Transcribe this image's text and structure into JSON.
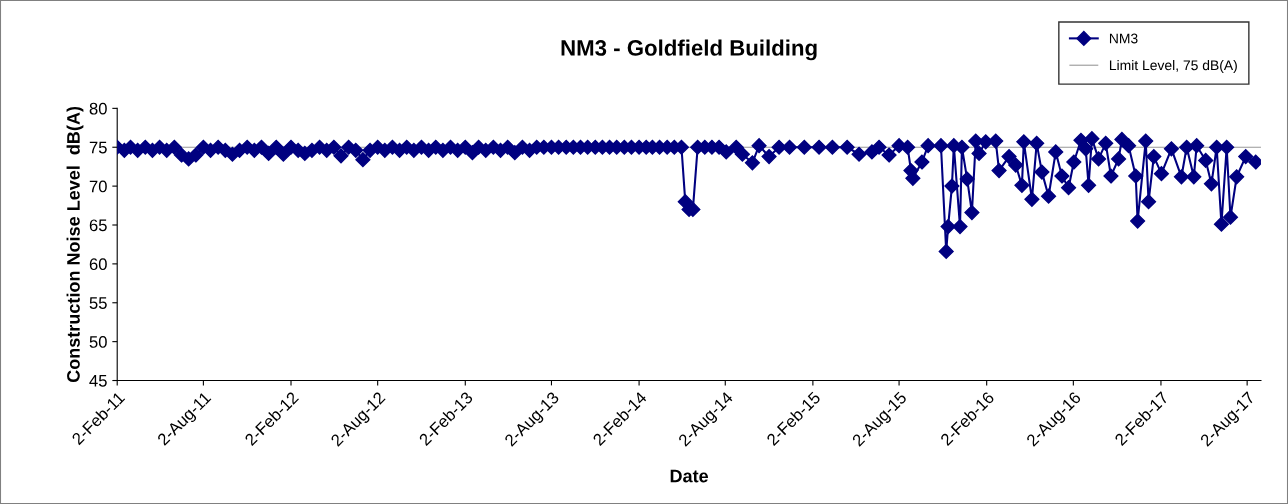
{
  "chart_data": {
    "type": "line",
    "title": "NM3 - Goldfield Building",
    "xlabel": "Date",
    "ylabel": "Construction Noise Level  dB(A)",
    "ylim": [
      45,
      80
    ],
    "yticks": [
      45,
      50,
      55,
      60,
      65,
      70,
      75,
      80
    ],
    "xlim": [
      "2011-02-02",
      "2017-08-31"
    ],
    "xticks": [
      {
        "value": "2011-02-02",
        "label": "2-Feb-11"
      },
      {
        "value": "2011-08-02",
        "label": "2-Aug-11"
      },
      {
        "value": "2012-02-02",
        "label": "2-Feb-12"
      },
      {
        "value": "2012-08-02",
        "label": "2-Aug-12"
      },
      {
        "value": "2013-02-02",
        "label": "2-Feb-13"
      },
      {
        "value": "2013-08-02",
        "label": "2-Aug-13"
      },
      {
        "value": "2014-02-02",
        "label": "2-Feb-14"
      },
      {
        "value": "2014-08-02",
        "label": "2-Aug-14"
      },
      {
        "value": "2015-02-02",
        "label": "2-Feb-15"
      },
      {
        "value": "2015-08-02",
        "label": "2-Aug-15"
      },
      {
        "value": "2016-02-02",
        "label": "2-Feb-16"
      },
      {
        "value": "2016-08-02",
        "label": "2-Aug-16"
      },
      {
        "value": "2017-02-02",
        "label": "2-Feb-17"
      },
      {
        "value": "2017-08-02",
        "label": "2-Aug-17"
      }
    ],
    "grid": false,
    "legend": "top right",
    "marker": "diamond",
    "line_style": "solid",
    "ref_lines": [
      {
        "axis": "y",
        "value": 75,
        "label": "Limit Level, 75 dB(A)",
        "color": "#999999"
      }
    ],
    "series": [
      {
        "name": "NM3",
        "color": "#000080",
        "x": [
          "2011-02-02",
          "2011-02-17",
          "2011-03-02",
          "2011-03-17",
          "2011-04-02",
          "2011-04-17",
          "2011-05-02",
          "2011-05-17",
          "2011-06-02",
          "2011-06-17",
          "2011-07-02",
          "2011-07-17",
          "2011-08-02",
          "2011-08-17",
          "2011-09-02",
          "2011-09-17",
          "2011-10-02",
          "2011-10-17",
          "2011-11-02",
          "2011-11-17",
          "2011-12-02",
          "2011-12-17",
          "2012-01-02",
          "2012-01-17",
          "2012-02-02",
          "2012-02-17",
          "2012-03-02",
          "2012-03-17",
          "2012-04-02",
          "2012-04-17",
          "2012-05-02",
          "2012-05-17",
          "2012-06-02",
          "2012-06-17",
          "2012-07-02",
          "2012-07-17",
          "2012-08-02",
          "2012-08-17",
          "2012-09-02",
          "2012-09-17",
          "2012-10-02",
          "2012-10-17",
          "2012-11-02",
          "2012-11-17",
          "2012-12-02",
          "2012-12-17",
          "2013-01-02",
          "2013-01-17",
          "2013-02-02",
          "2013-02-17",
          "2013-03-02",
          "2013-03-17",
          "2013-04-02",
          "2013-04-17",
          "2013-05-02",
          "2013-05-17",
          "2013-06-02",
          "2013-06-17",
          "2013-07-02",
          "2013-07-17",
          "2013-08-02",
          "2013-08-17",
          "2013-09-02",
          "2013-09-17",
          "2013-10-02",
          "2013-10-17",
          "2013-11-02",
          "2013-11-17",
          "2013-12-02",
          "2013-12-17",
          "2014-01-02",
          "2014-01-17",
          "2014-02-02",
          "2014-02-17",
          "2014-03-02",
          "2014-03-17",
          "2014-04-02",
          "2014-04-17",
          "2014-05-02",
          "2014-05-10",
          "2014-05-18",
          "2014-05-26",
          "2014-06-05",
          "2014-06-20",
          "2014-07-05",
          "2014-07-20",
          "2014-08-04",
          "2014-08-25",
          "2014-09-07",
          "2014-09-28",
          "2014-10-12",
          "2014-11-02",
          "2014-11-23",
          "2014-12-15",
          "2015-01-15",
          "2015-02-15",
          "2015-03-15",
          "2015-04-15",
          "2015-05-10",
          "2015-06-06",
          "2015-06-21",
          "2015-07-12",
          "2015-08-02",
          "2015-08-20",
          "2015-08-27",
          "2015-08-31",
          "2015-09-19",
          "2015-10-02",
          "2015-10-29",
          "2015-11-09",
          "2015-11-13",
          "2015-11-21",
          "2015-11-25",
          "2015-12-08",
          "2015-12-12",
          "2015-12-23",
          "2016-01-02",
          "2016-01-10",
          "2016-01-17",
          "2016-01-31",
          "2016-02-21",
          "2016-02-28",
          "2016-03-20",
          "2016-04-03",
          "2016-04-16",
          "2016-04-20",
          "2016-05-07",
          "2016-05-17",
          "2016-05-28",
          "2016-06-11",
          "2016-06-26",
          "2016-07-09",
          "2016-07-23",
          "2016-08-03",
          "2016-08-18",
          "2016-08-28",
          "2016-09-03",
          "2016-09-10",
          "2016-09-24",
          "2016-10-09",
          "2016-10-20",
          "2016-11-05",
          "2016-11-12",
          "2016-11-26",
          "2016-12-11",
          "2016-12-15",
          "2017-01-01",
          "2017-01-07",
          "2017-01-18",
          "2017-02-03",
          "2017-02-24",
          "2017-03-17",
          "2017-03-28",
          "2017-04-12",
          "2017-04-18",
          "2017-05-07",
          "2017-05-19",
          "2017-05-30",
          "2017-06-09",
          "2017-06-20",
          "2017-06-28",
          "2017-07-11",
          "2017-07-30",
          "2017-08-20"
        ],
        "values": [
          75.0,
          74.6,
          75.0,
          74.6,
          75.0,
          74.6,
          75.0,
          74.6,
          75.0,
          74.0,
          73.5,
          74.0,
          75.0,
          74.6,
          75.0,
          74.6,
          74.1,
          74.6,
          75.0,
          74.6,
          75.0,
          74.2,
          75.0,
          74.1,
          75.0,
          74.6,
          74.2,
          74.6,
          75.0,
          74.6,
          75.0,
          73.9,
          75.0,
          74.6,
          73.4,
          74.6,
          75.0,
          74.6,
          75.0,
          74.6,
          75.0,
          74.6,
          75.0,
          74.6,
          75.0,
          74.6,
          75.0,
          74.6,
          75.0,
          74.3,
          75.0,
          74.6,
          75.0,
          74.6,
          75.0,
          74.3,
          75.0,
          74.6,
          75.0,
          75.0,
          75.0,
          75.0,
          75.0,
          75.0,
          75.0,
          75.0,
          75.0,
          75.0,
          75.0,
          75.0,
          75.0,
          75.0,
          75.0,
          75.0,
          75.0,
          75.0,
          75.0,
          75.0,
          75.0,
          68.0,
          67.0,
          67.0,
          75.0,
          75.0,
          75.0,
          75.0,
          74.4,
          75.0,
          74.1,
          73.0,
          75.2,
          73.8,
          75.0,
          75.0,
          75.0,
          75.0,
          75.0,
          75.0,
          74.1,
          74.4,
          75.0,
          74.0,
          75.2,
          75.0,
          72.0,
          71.0,
          73.1,
          75.2,
          75.2,
          61.6,
          64.8,
          70.0,
          75.2,
          64.8,
          75.0,
          70.9,
          66.6,
          75.8,
          74.2,
          75.7,
          75.8,
          72.0,
          73.8,
          72.7,
          70.1,
          75.7,
          68.3,
          75.5,
          71.8,
          68.7,
          74.4,
          71.3,
          69.8,
          73.1,
          75.9,
          74.8,
          70.1,
          76.1,
          73.5,
          75.5,
          71.3,
          73.5,
          76.0,
          75.2,
          71.3,
          65.5,
          75.8,
          68.0,
          73.8,
          71.6,
          74.8,
          71.2,
          75.0,
          71.2,
          75.2,
          73.3,
          70.3,
          75.0,
          65.1,
          75.0,
          66.0,
          71.2,
          73.8,
          73.1
        ]
      }
    ]
  }
}
